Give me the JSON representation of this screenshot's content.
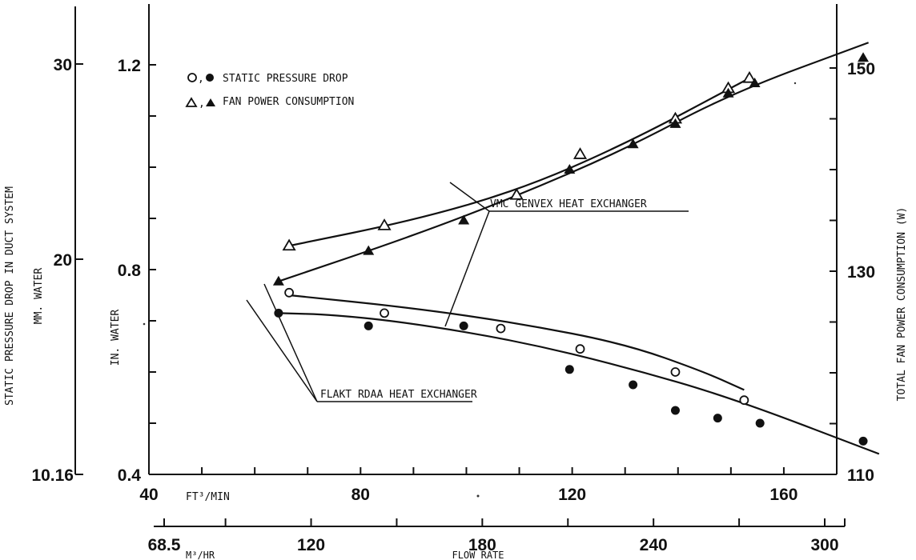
{
  "chart_data": {
    "type": "scatter",
    "title": "",
    "legend": {
      "placement": "top-left",
      "entries": [
        {
          "symbol": "○,●",
          "label": "STATIC PRESSURE DROP"
        },
        {
          "symbol": "△,▲",
          "label": "FAN POWER CONSUMPTION"
        }
      ]
    },
    "x_axis": {
      "primary_unit": "FT³/MIN",
      "primary_ticks": [
        "40",
        "80",
        "120",
        "160"
      ],
      "primary_range": [
        40,
        170
      ],
      "secondary_unit": "M³/HR",
      "secondary_ticks": [
        "68.5",
        "120",
        "180",
        "240",
        "300"
      ],
      "secondary_ticks_values": [
        68.5,
        120,
        180,
        240,
        300
      ],
      "label": "FLOW RATE"
    },
    "y_axis_left": {
      "label": "IN. WATER",
      "range": [
        0.4,
        1.3
      ],
      "ticks": [
        "0.4",
        "0.8",
        "1.2"
      ],
      "ticks_values": [
        0.4,
        0.8,
        1.2
      ]
    },
    "y_axis_far_left": {
      "label": "STATIC PRESSURE DROP IN DUCT SYSTEM",
      "unit": "MM. WATER",
      "ticks": [
        "10.16",
        "20",
        "30"
      ],
      "ticks_values": [
        10.16,
        20,
        30
      ]
    },
    "y_axis_right": {
      "label": "TOTAL FAN POWER CONSUMPTION (W)",
      "range": [
        110,
        155
      ],
      "ticks": [
        "110",
        "130",
        "150"
      ],
      "ticks_values": [
        110,
        130,
        150
      ]
    },
    "series": [
      {
        "name": "VMC GENVEX HEAT EXCHANGER",
        "kind": "pressure",
        "marker": "open-circle",
        "axis": "left",
        "x": [
          66.5,
          84.5,
          106.5,
          121.5,
          139.5,
          152.5
        ],
        "y": [
          0.755,
          0.715,
          0.685,
          0.645,
          0.6,
          0.545
        ]
      },
      {
        "name": "FLAKT RDAA HEAT EXCHANGER",
        "kind": "pressure",
        "marker": "filled-circle",
        "axis": "left",
        "x": [
          64.5,
          81.5,
          99.5,
          119.5,
          131.5,
          139.5,
          147.5,
          155.5,
          175
        ],
        "y": [
          0.715,
          0.69,
          0.69,
          0.605,
          0.575,
          0.525,
          0.51,
          0.5,
          0.465
        ]
      },
      {
        "name": "VMC GENVEX HEAT EXCHANGER",
        "kind": "power",
        "marker": "open-triangle",
        "axis": "right",
        "x": [
          66.5,
          84.5,
          109.5,
          121.5,
          139.5,
          149.5,
          153.5
        ],
        "y": [
          132.5,
          134.5,
          137.5,
          141.5,
          145,
          148,
          149
        ]
      },
      {
        "name": "FLAKT RDAA HEAT EXCHANGER",
        "kind": "power",
        "marker": "filled-triangle",
        "axis": "right",
        "x": [
          64.5,
          81.5,
          99.5,
          119.5,
          131.5,
          139.5,
          149.5,
          154.5,
          175
        ],
        "y": [
          129,
          132,
          135,
          140,
          142.5,
          144.5,
          147.5,
          148.5,
          151
        ]
      }
    ],
    "curves": [
      {
        "marker": "open-circle",
        "axis": "left",
        "x": [
          66.5,
          90,
          110,
          130,
          145,
          152.5
        ],
        "y": [
          0.75,
          0.725,
          0.695,
          0.655,
          0.6,
          0.565
        ]
      },
      {
        "marker": "filled-circle",
        "axis": "left",
        "x": [
          64.5,
          75,
          90,
          110,
          130,
          150,
          178
        ],
        "y": [
          0.715,
          0.712,
          0.695,
          0.66,
          0.61,
          0.55,
          0.44
        ]
      },
      {
        "marker": "open-triangle",
        "axis": "right",
        "x": [
          66.5,
          90,
          110,
          130,
          153.5
        ],
        "y": [
          132.5,
          135,
          138,
          142.5,
          149
        ]
      },
      {
        "marker": "filled-triangle",
        "axis": "right",
        "x": [
          64.5,
          90,
          110,
          130,
          150,
          176
        ],
        "y": [
          129,
          133.5,
          137.5,
          142,
          147.5,
          152.5
        ]
      }
    ],
    "annotations": [
      {
        "label": "VMC GENVEX HEAT EXCHANGER"
      },
      {
        "label": "FLAKT RDAA HEAT EXCHANGER"
      }
    ],
    "grid": false
  }
}
